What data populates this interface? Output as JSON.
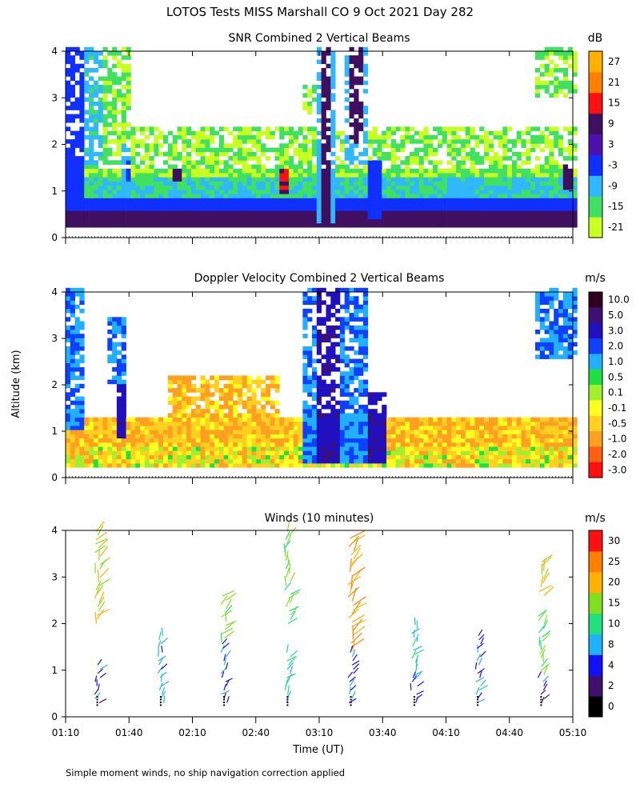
{
  "page": {
    "title": "LOTOS Tests MISS Marshall CO   9 Oct 2021 Day 282",
    "ylabel": "Altitude (km)",
    "xlabel": "Time (UT)",
    "footnote": "Simple moment winds, no ship navigation correction applied"
  },
  "chart_data": [
    {
      "type": "heatmap",
      "title": "SNR Combined 2 Vertical Beams",
      "xlabel": "Time (UT)",
      "ylabel": "Altitude (km)",
      "ylim": [
        0,
        4
      ],
      "y_ticks": [
        "0",
        "1",
        "2",
        "3",
        "4"
      ],
      "x_ticks": [
        "01:10",
        "01:40",
        "02:10",
        "02:40",
        "03:10",
        "03:40",
        "04:10",
        "04:40",
        "05:10"
      ],
      "colorbar": {
        "unit": "dB",
        "labels": [
          "-21",
          "-15",
          "-9",
          "-3",
          "3",
          "9",
          "15",
          "21",
          "27"
        ],
        "colors": [
          "#c8ff20",
          "#40e060",
          "#30b8ff",
          "#1030ff",
          "#5010b0",
          "#401060",
          "#ff1010",
          "#ff8000",
          "#ffb000"
        ]
      },
      "regions": [
        {
          "t0": 70,
          "t1": 310,
          "z0": 0.22,
          "z1": 0.5,
          "value": 9
        },
        {
          "t0": 70,
          "t1": 310,
          "z0": 0.5,
          "z1": 0.8,
          "value": -3
        },
        {
          "t0": 70,
          "t1": 310,
          "z0": 0.8,
          "z1": 1.3,
          "value": -12
        },
        {
          "t0": 70,
          "t1": 310,
          "z0": 1.3,
          "z1": 2.3,
          "value": -18
        },
        {
          "t0": 70,
          "t1": 78,
          "z0": 0.5,
          "z1": 4.0,
          "value": -3
        },
        {
          "t0": 78,
          "t1": 86,
          "z0": 1.5,
          "z1": 4.0,
          "value": -10
        },
        {
          "t0": 86,
          "t1": 100,
          "z0": 2.3,
          "z1": 4.0,
          "value": -18
        },
        {
          "t0": 95,
          "t1": 100,
          "z0": 0.8,
          "z1": 2.0,
          "value": -9
        },
        {
          "t0": 97,
          "t1": 99,
          "z0": 1.2,
          "z1": 1.6,
          "value": -3
        },
        {
          "t0": 120,
          "t1": 125,
          "z0": 1.2,
          "z1": 1.4,
          "value": 9
        },
        {
          "t0": 182,
          "t1": 196,
          "z0": 2.6,
          "z1": 3.2,
          "value": -18
        },
        {
          "t0": 171,
          "t1": 175,
          "z0": 0.9,
          "z1": 1.4,
          "value": 12
        },
        {
          "t0": 188,
          "t1": 197,
          "z0": 0.3,
          "z1": 4.0,
          "value": -9
        },
        {
          "t0": 190,
          "t1": 194,
          "z0": 0.3,
          "z1": 4.0,
          "value": 9
        },
        {
          "t0": 200,
          "t1": 212,
          "z0": 1.5,
          "z1": 4.0,
          "value": -9
        },
        {
          "t0": 203,
          "t1": 209,
          "z0": 2.0,
          "z1": 4.0,
          "value": 9
        },
        {
          "t0": 212,
          "t1": 219,
          "z0": 0.4,
          "z1": 1.6,
          "value": -3
        },
        {
          "t0": 250,
          "t1": 262,
          "z0": 0.8,
          "z1": 1.2,
          "value": -9
        },
        {
          "t0": 290,
          "t1": 310,
          "z0": 3.0,
          "z1": 4.0,
          "value": -18
        },
        {
          "t0": 304,
          "t1": 308,
          "z0": 1.0,
          "z1": 1.5,
          "value": 9
        }
      ]
    },
    {
      "type": "heatmap",
      "title": "Doppler Velocity Combined 2 Vertical Beams",
      "xlabel": "Time (UT)",
      "ylabel": "Altitude (km)",
      "ylim": [
        0,
        4
      ],
      "y_ticks": [
        "0",
        "1",
        "2",
        "3",
        "4"
      ],
      "x_ticks": [
        "01:10",
        "01:40",
        "02:10",
        "02:40",
        "03:10",
        "03:40",
        "04:10",
        "04:40",
        "05:10"
      ],
      "colorbar": {
        "unit": "m/s",
        "labels": [
          "10.0",
          "5.0",
          "3.0",
          "2.0",
          "1.0",
          "0.5",
          "0.1",
          "-0.1",
          "-0.5",
          "-1.0",
          "-2.0",
          "-3.0"
        ],
        "colors": [
          "#300020",
          "#401070",
          "#2010c0",
          "#1040ff",
          "#20b0ff",
          "#20e040",
          "#a0f030",
          "#ffff20",
          "#ffd020",
          "#ffa020",
          "#ff6010",
          "#ff1010"
        ]
      },
      "regions": [
        {
          "t0": 70,
          "t1": 310,
          "z0": 0.22,
          "z1": 0.6,
          "value": -0.3
        },
        {
          "t0": 70,
          "t1": 310,
          "z0": 0.6,
          "z1": 1.3,
          "value": -0.7
        },
        {
          "t0": 118,
          "t1": 170,
          "z0": 1.3,
          "z1": 2.2,
          "value": -0.7
        },
        {
          "t0": 70,
          "t1": 78,
          "z0": 1.0,
          "z1": 4.0,
          "value": 1.5
        },
        {
          "t0": 88,
          "t1": 98,
          "z0": 2.0,
          "z1": 3.4,
          "value": 1.5
        },
        {
          "t0": 94,
          "t1": 98,
          "z0": 0.8,
          "z1": 2.0,
          "value": 3.5
        },
        {
          "t0": 180,
          "t1": 200,
          "z0": 0.3,
          "z1": 4.0,
          "value": 1.5
        },
        {
          "t0": 187,
          "t1": 198,
          "z0": 0.3,
          "z1": 4.0,
          "value": 3.5
        },
        {
          "t0": 200,
          "t1": 212,
          "z0": 0.3,
          "z1": 4.0,
          "value": 1.5
        },
        {
          "t0": 212,
          "t1": 220,
          "z0": 0.3,
          "z1": 1.8,
          "value": 3.5
        },
        {
          "t0": 290,
          "t1": 310,
          "z0": 2.5,
          "z1": 4.0,
          "value": 1.5
        }
      ]
    },
    {
      "type": "scatter",
      "title": "Winds (10 minutes)",
      "xlabel": "Time (UT)",
      "ylabel": "Altitude (km)",
      "xlim": [
        70,
        310
      ],
      "ylim": [
        0,
        4
      ],
      "x_ticks": [
        "01:10",
        "01:40",
        "02:10",
        "02:40",
        "03:10",
        "03:40",
        "04:10",
        "04:40",
        "05:10"
      ],
      "y_ticks": [
        "0",
        "1",
        "2",
        "3",
        "4"
      ],
      "colorbar": {
        "unit": "m/s",
        "labels": [
          "0",
          "2",
          "4",
          "8",
          "10",
          "15",
          "20",
          "25",
          "30"
        ],
        "colors": [
          "#000000",
          "#401070",
          "#1010ff",
          "#20b0ff",
          "#20e080",
          "#80e020",
          "#ffb000",
          "#ff8000",
          "#ff1010"
        ]
      },
      "profiles": [
        {
          "time": 85,
          "bands": [
            [
              2.0,
              4.0,
              17
            ],
            [
              0.3,
              1.2,
              4
            ]
          ]
        },
        {
          "time": 115,
          "bands": [
            [
              0.3,
              1.8,
              7
            ]
          ]
        },
        {
          "time": 145,
          "bands": [
            [
              1.6,
              2.6,
              14
            ],
            [
              0.3,
              1.6,
              5
            ]
          ]
        },
        {
          "time": 175,
          "bands": [
            [
              2.0,
              4.0,
              13
            ],
            [
              0.3,
              1.4,
              9
            ]
          ]
        },
        {
          "time": 205,
          "bands": [
            [
              1.4,
              3.9,
              22
            ],
            [
              0.3,
              1.4,
              6
            ]
          ]
        },
        {
          "time": 235,
          "bands": [
            [
              0.8,
              2.0,
              9
            ],
            [
              0.3,
              0.9,
              5
            ]
          ]
        },
        {
          "time": 265,
          "bands": [
            [
              0.3,
              1.8,
              7
            ]
          ]
        },
        {
          "time": 295,
          "bands": [
            [
              2.6,
              3.4,
              19
            ],
            [
              0.9,
              2.2,
              13
            ],
            [
              0.3,
              0.9,
              4
            ]
          ]
        }
      ]
    }
  ]
}
